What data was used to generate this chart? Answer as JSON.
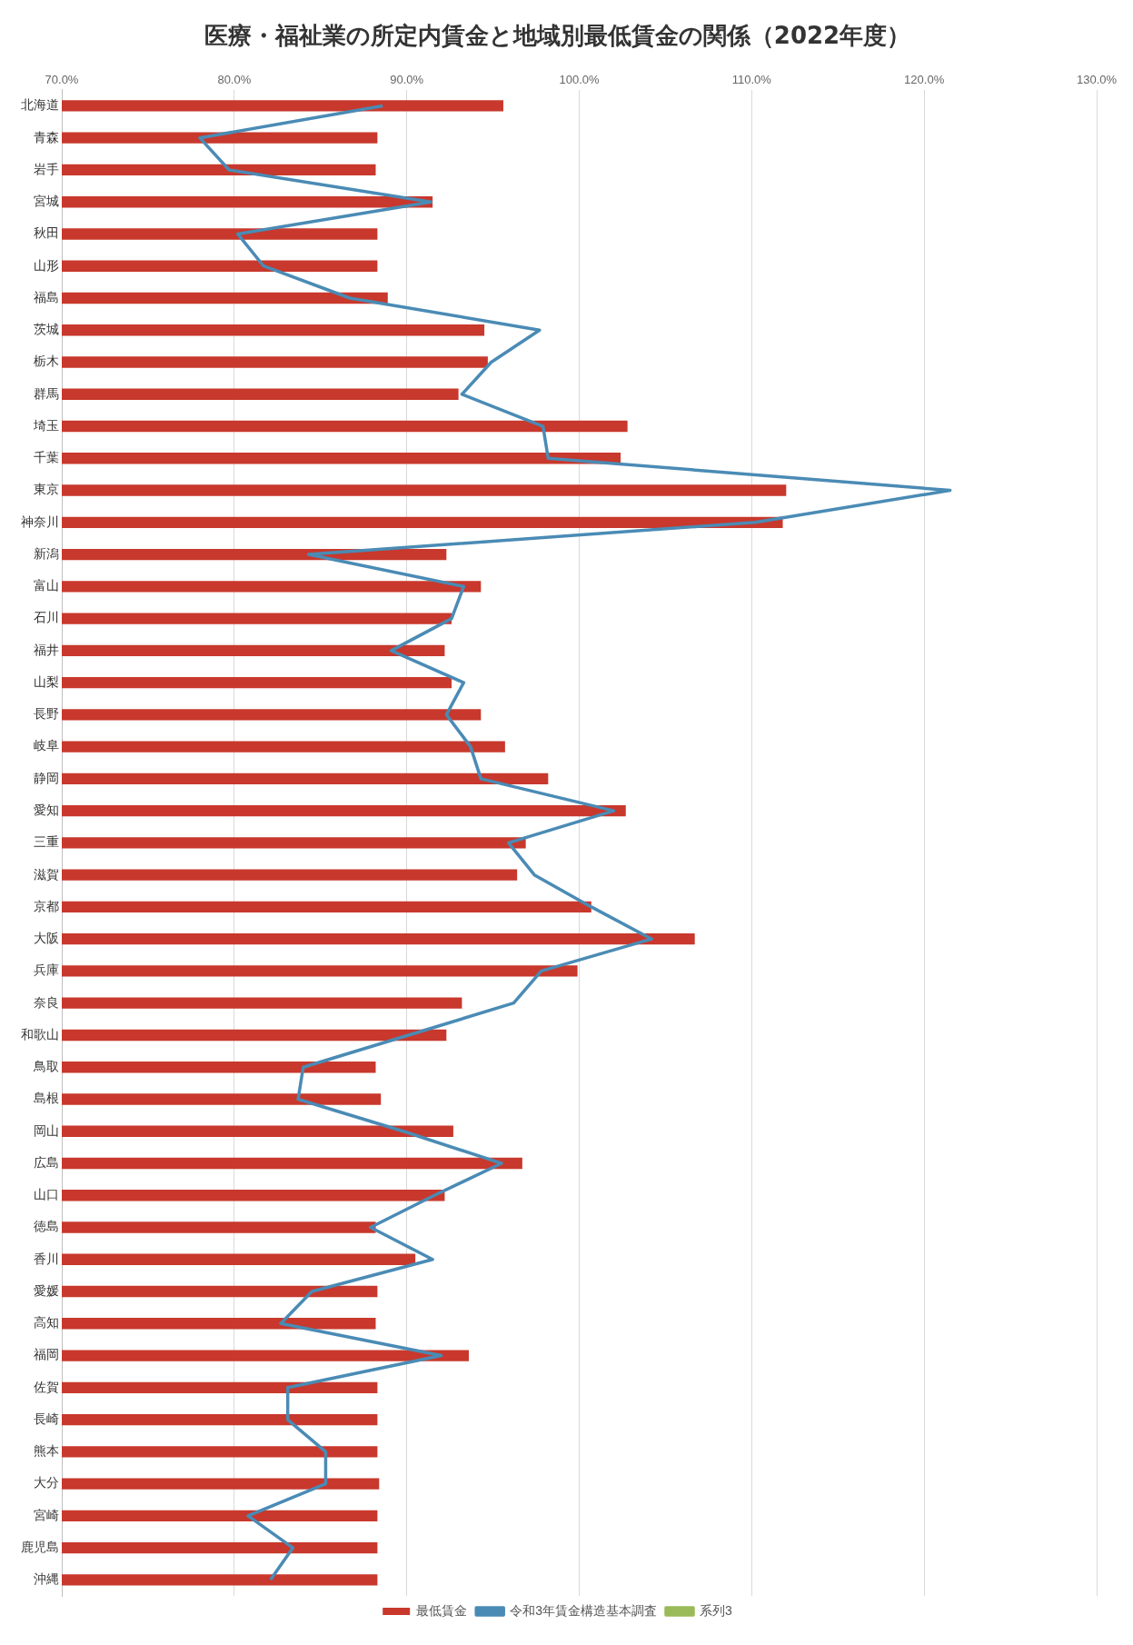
{
  "chart_data": {
    "type": "bar",
    "orientation": "horizontal",
    "title": "医療・福祉業の所定内賃金と地域別最低賃金の関係（2022年度）",
    "categories": [
      "北海道",
      "青森",
      "岩手",
      "宮城",
      "秋田",
      "山形",
      "福島",
      "茨城",
      "栃木",
      "群馬",
      "埼玉",
      "千葉",
      "東京",
      "神奈川",
      "新潟",
      "富山",
      "石川",
      "福井",
      "山梨",
      "長野",
      "岐阜",
      "静岡",
      "愛知",
      "三重",
      "滋賀",
      "京都",
      "大阪",
      "兵庫",
      "奈良",
      "和歌山",
      "鳥取",
      "島根",
      "岡山",
      "広島",
      "山口",
      "徳島",
      "香川",
      "愛媛",
      "高知",
      "福岡",
      "佐賀",
      "長崎",
      "熊本",
      "大分",
      "宮崎",
      "鹿児島",
      "沖縄"
    ],
    "series": [
      {
        "name": "最低賃金",
        "color": "#c8382c",
        "values": [
          95.6,
          88.3,
          88.2,
          91.5,
          88.3,
          88.3,
          88.9,
          94.5,
          94.7,
          93.0,
          102.8,
          102.4,
          112.0,
          111.8,
          92.3,
          94.3,
          92.6,
          92.2,
          92.6,
          94.3,
          95.7,
          98.2,
          102.7,
          96.9,
          96.4,
          100.7,
          106.7,
          99.9,
          93.2,
          92.3,
          88.2,
          88.5,
          92.7,
          96.7,
          92.2,
          88.2,
          90.5,
          88.3,
          88.2,
          93.6,
          88.3,
          88.3,
          88.3,
          88.4,
          88.3,
          88.3,
          88.3
        ]
      },
      {
        "name": "令和3年賃金構造基本調査",
        "type": "line",
        "color": "#4a8bb5",
        "values": [
          88.6,
          78.0,
          79.7,
          91.4,
          80.2,
          81.7,
          86.7,
          97.7,
          94.9,
          93.2,
          97.9,
          98.2,
          121.5,
          110.2,
          84.3,
          93.3,
          92.6,
          89.1,
          93.3,
          92.3,
          93.7,
          94.3,
          102.0,
          95.9,
          97.4,
          100.7,
          104.2,
          97.8,
          96.2,
          90.1,
          84.0,
          83.7,
          89.8,
          95.5,
          91.6,
          87.9,
          91.5,
          84.5,
          82.7,
          92.0,
          83.1,
          83.1,
          85.3,
          85.3,
          80.8,
          83.4,
          82.1
        ]
      },
      {
        "name": "系列3",
        "type": "line",
        "color": "#9bbb59",
        "values": [
          null,
          null,
          null,
          null,
          null,
          null,
          null,
          null,
          null,
          null,
          null,
          null,
          null,
          null,
          null,
          null,
          null,
          null,
          null,
          null,
          null,
          null,
          null,
          null,
          null,
          null,
          null,
          null,
          null,
          null,
          null,
          null,
          null,
          null,
          null,
          null,
          null,
          null,
          null,
          null,
          null,
          null,
          null,
          null,
          null,
          null,
          null
        ]
      }
    ],
    "xlim": [
      70,
      130
    ],
    "xticks": [
      {
        "value": 70,
        "label": "70.0%"
      },
      {
        "value": 80,
        "label": "80.0%"
      },
      {
        "value": 90,
        "label": "90.0%"
      },
      {
        "value": 100,
        "label": "100.0%"
      },
      {
        "value": 110,
        "label": "110.0%"
      },
      {
        "value": 120,
        "label": "120.0%"
      },
      {
        "value": 130,
        "label": "130.0%"
      }
    ],
    "grid": "x",
    "legend": "bottom",
    "marker": "none",
    "line_style": "solid"
  }
}
